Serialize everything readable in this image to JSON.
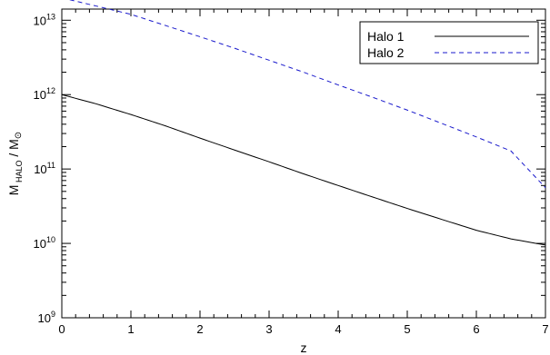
{
  "chart_data": {
    "type": "line",
    "xlabel": "z",
    "ylabel": {
      "main": "M",
      "sub": "HALO",
      "rest": " / M",
      "sun": "⊙"
    },
    "xlim": [
      0,
      7
    ],
    "ylim_log10": [
      9,
      13.15
    ],
    "yscale": "log",
    "x_ticks": [
      0,
      1,
      2,
      3,
      4,
      5,
      6,
      7
    ],
    "x_minor_step": 0.2,
    "y_ticks": [
      {
        "exp": 9,
        "base": "10",
        "sup": "9"
      },
      {
        "exp": 10,
        "base": "10",
        "sup": "10"
      },
      {
        "exp": 11,
        "base": "10",
        "sup": "11"
      },
      {
        "exp": 12,
        "base": "10",
        "sup": "12"
      },
      {
        "exp": 13,
        "base": "10",
        "sup": "13"
      }
    ],
    "legend_position": "top-right",
    "grid": false,
    "series": [
      {
        "name": "Halo 1",
        "color": "#000000",
        "dash": "solid",
        "x": [
          0,
          0.5,
          1,
          1.5,
          2,
          2.5,
          3,
          3.5,
          4,
          4.5,
          5,
          5.5,
          6,
          6.5,
          7
        ],
        "y": [
          1000000000000.0,
          750000000000.0,
          540000000000.0,
          380000000000.0,
          260000000000.0,
          180000000000.0,
          125000000000.0,
          86000000000.0,
          60000000000.0,
          42000000000.0,
          29500000000.0,
          21000000000.0,
          15000000000.0,
          11500000000.0,
          9500000000.0
        ]
      },
      {
        "name": "Halo 2",
        "color": "#1a1acc",
        "dash": "dashed",
        "x": [
          0,
          0.5,
          1,
          1.5,
          2,
          2.5,
          3,
          3.5,
          4,
          4.5,
          5,
          5.5,
          6,
          6.5,
          7
        ],
        "y": [
          20000000000000.0,
          15500000000000.0,
          12000000000000.0,
          8500000000000.0,
          6000000000000.0,
          4200000000000.0,
          2900000000000.0,
          2000000000000.0,
          1350000000000.0,
          920000000000.0,
          620000000000.0,
          410000000000.0,
          270000000000.0,
          175000000000.0,
          56000000000.0
        ]
      }
    ]
  }
}
